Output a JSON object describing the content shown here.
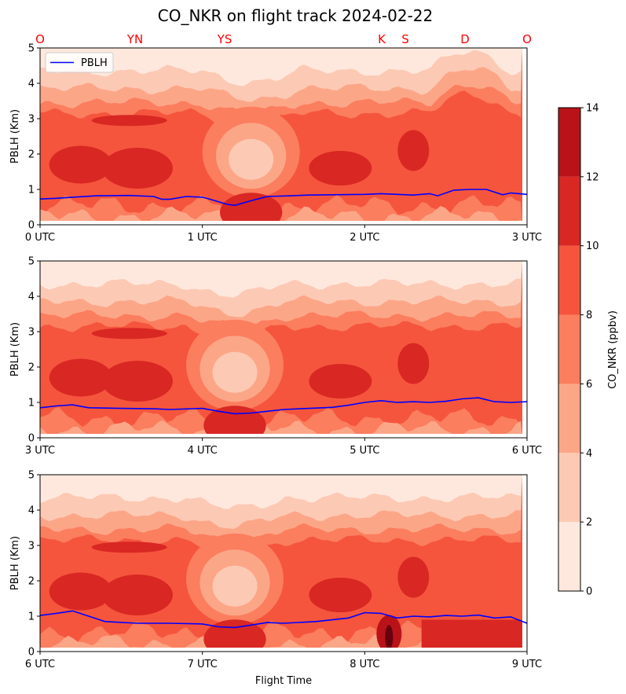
{
  "title": "CO_NKR on flight track 2024-02-22",
  "station_labels": [
    "O",
    "YN",
    "YS",
    "K",
    "S",
    "D",
    "O"
  ],
  "station_color": "#ff0000",
  "xlabel": "Flight Time",
  "ylabel": "PBLH (Km)",
  "legend_label": "PBLH",
  "colorbar_label": "CO_NKR (ppbv)",
  "chart_data": {
    "type": "filled-contour with line overlay",
    "colorscale": {
      "levels": [
        0,
        2,
        4,
        6,
        8,
        10,
        12,
        14
      ],
      "colors": [
        "#fee8dd",
        "#fcc9b4",
        "#fca688",
        "#fb7e5e",
        "#f5553d",
        "#d92723",
        "#b91319"
      ],
      "tick_labels": [
        "0",
        "2",
        "4",
        "6",
        "8",
        "10",
        "12",
        "14"
      ]
    },
    "panels": [
      {
        "xlim_hours": [
          0,
          3
        ],
        "x_tick_labels": [
          "0 UTC",
          "1 UTC",
          "2 UTC",
          "3 UTC"
        ],
        "ylim": [
          0,
          5
        ],
        "y_tick_labels": [
          "0",
          "1",
          "2",
          "3",
          "4",
          "5"
        ],
        "pblh": [
          [
            0,
            0.73
          ],
          [
            0.1,
            0.75
          ],
          [
            0.2,
            0.78
          ],
          [
            0.35,
            0.82
          ],
          [
            0.55,
            0.83
          ],
          [
            0.7,
            0.8
          ],
          [
            0.75,
            0.72
          ],
          [
            0.8,
            0.72
          ],
          [
            0.9,
            0.8
          ],
          [
            1.0,
            0.78
          ],
          [
            1.05,
            0.72
          ],
          [
            1.15,
            0.58
          ],
          [
            1.2,
            0.55
          ],
          [
            1.3,
            0.68
          ],
          [
            1.4,
            0.8
          ],
          [
            1.55,
            0.82
          ],
          [
            1.65,
            0.84
          ],
          [
            1.8,
            0.85
          ],
          [
            2.0,
            0.86
          ],
          [
            2.1,
            0.88
          ],
          [
            2.2,
            0.86
          ],
          [
            2.3,
            0.84
          ],
          [
            2.4,
            0.88
          ],
          [
            2.45,
            0.82
          ],
          [
            2.55,
            0.98
          ],
          [
            2.65,
            1.0
          ],
          [
            2.75,
            1.0
          ],
          [
            2.85,
            0.85
          ],
          [
            2.9,
            0.9
          ],
          [
            2.95,
            0.88
          ],
          [
            3.0,
            0.86
          ]
        ],
        "features": {
          "core_hours": [
            1.0,
            1.6
          ],
          "ur_high_hours": [
            2.4,
            2.9
          ]
        }
      },
      {
        "xlim_hours": [
          3,
          6
        ],
        "x_tick_labels": [
          "3 UTC",
          "4 UTC",
          "5 UTC",
          "6 UTC"
        ],
        "ylim": [
          0,
          5
        ],
        "y_tick_labels": [
          "0",
          "1",
          "2",
          "3",
          "4",
          "5"
        ],
        "pblh": [
          [
            3.0,
            0.85
          ],
          [
            3.1,
            0.9
          ],
          [
            3.2,
            0.93
          ],
          [
            3.3,
            0.85
          ],
          [
            3.5,
            0.83
          ],
          [
            3.7,
            0.82
          ],
          [
            3.8,
            0.8
          ],
          [
            4.0,
            0.83
          ],
          [
            4.1,
            0.75
          ],
          [
            4.2,
            0.68
          ],
          [
            4.3,
            0.7
          ],
          [
            4.4,
            0.75
          ],
          [
            4.5,
            0.8
          ],
          [
            4.6,
            0.82
          ],
          [
            4.8,
            0.86
          ],
          [
            4.9,
            0.92
          ],
          [
            5.0,
            1.0
          ],
          [
            5.1,
            1.05
          ],
          [
            5.2,
            1.0
          ],
          [
            5.3,
            1.02
          ],
          [
            5.4,
            1.0
          ],
          [
            5.5,
            1.03
          ],
          [
            5.6,
            1.1
          ],
          [
            5.7,
            1.13
          ],
          [
            5.8,
            1.02
          ],
          [
            5.9,
            1.0
          ],
          [
            6.0,
            1.02
          ]
        ],
        "features": {
          "core_hours": [
            3.9,
            4.5
          ],
          "ur_high_hours": []
        }
      },
      {
        "xlim_hours": [
          6,
          9
        ],
        "x_tick_labels": [
          "6 UTC",
          "7 UTC",
          "8 UTC",
          "9 UTC"
        ],
        "ylim": [
          0,
          5
        ],
        "y_tick_labels": [
          "0",
          "1",
          "2",
          "3",
          "4",
          "5"
        ],
        "pblh": [
          [
            6.0,
            1.02
          ],
          [
            6.1,
            1.08
          ],
          [
            6.2,
            1.15
          ],
          [
            6.3,
            1.0
          ],
          [
            6.4,
            0.85
          ],
          [
            6.6,
            0.8
          ],
          [
            6.8,
            0.8
          ],
          [
            7.0,
            0.78
          ],
          [
            7.1,
            0.7
          ],
          [
            7.2,
            0.68
          ],
          [
            7.3,
            0.75
          ],
          [
            7.4,
            0.82
          ],
          [
            7.5,
            0.8
          ],
          [
            7.7,
            0.85
          ],
          [
            7.9,
            0.95
          ],
          [
            8.0,
            1.1
          ],
          [
            8.1,
            1.08
          ],
          [
            8.2,
            0.95
          ],
          [
            8.3,
            1.0
          ],
          [
            8.4,
            0.98
          ],
          [
            8.5,
            1.02
          ],
          [
            8.6,
            1.0
          ],
          [
            8.7,
            1.03
          ],
          [
            8.8,
            0.95
          ],
          [
            8.9,
            0.98
          ],
          [
            9.0,
            0.8
          ]
        ],
        "features": {
          "core_hours": [
            6.9,
            7.5
          ],
          "ur_high_hours": []
        }
      }
    ]
  }
}
